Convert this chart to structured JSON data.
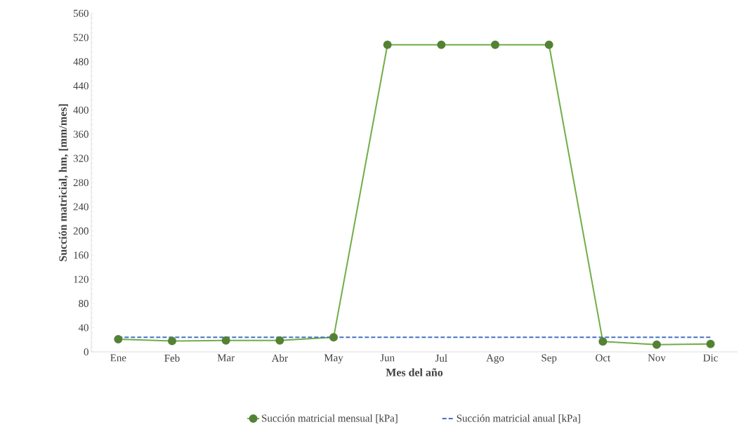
{
  "chart_data": {
    "type": "line",
    "xlabel": "Mes del año",
    "ylabel": "Succión matricial, hm, [mm/mes]",
    "categories": [
      "Ene",
      "Feb",
      "Mar",
      "Abr",
      "May",
      "Jun",
      "Jul",
      "Ago",
      "Sep",
      "Oct",
      "Nov",
      "Dic"
    ],
    "series": [
      {
        "name": "Succión matricial mensual [kPa]",
        "color": "#70ad47",
        "marker": "circle",
        "line_style": "solid",
        "values": [
          21,
          18,
          19,
          19,
          24,
          508,
          508,
          508,
          508,
          17,
          12,
          13
        ]
      },
      {
        "name": "Succión matricial anual [kPa]",
        "color": "#4472c4",
        "marker": "none",
        "line_style": "dashed",
        "values": [
          24,
          24,
          24,
          24,
          24,
          24,
          24,
          24,
          24,
          24,
          24,
          24
        ]
      }
    ],
    "ylim": [
      0,
      560
    ],
    "yticks": [
      0,
      40,
      80,
      120,
      160,
      200,
      240,
      280,
      320,
      360,
      400,
      440,
      480,
      520,
      560
    ],
    "grid": false,
    "legend": "bottom"
  }
}
